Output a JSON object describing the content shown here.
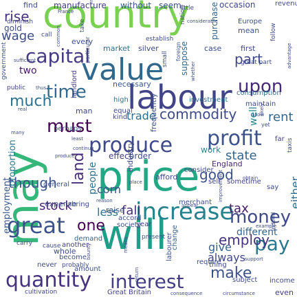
{
  "words": [
    {
      "text": "country",
      "color": "#7ad151"
    },
    {
      "text": "value",
      "color": "#31688e"
    },
    {
      "text": "labour",
      "color": "#414487"
    },
    {
      "text": "may",
      "color": "#35b779"
    },
    {
      "text": "price",
      "color": "#22a884"
    },
    {
      "text": "will",
      "color": "#1f9e89"
    },
    {
      "text": "increase",
      "color": "#26828e"
    },
    {
      "text": "produce",
      "color": "#3e4a89"
    },
    {
      "text": "profit",
      "color": "#3b528b"
    },
    {
      "text": "capital",
      "color": "#443983"
    },
    {
      "text": "time",
      "color": "#31688e"
    },
    {
      "text": "upon",
      "color": "#482878"
    },
    {
      "text": "much",
      "color": "#2c728e"
    },
    {
      "text": "must",
      "color": "#440154"
    },
    {
      "text": "great",
      "color": "#3b528b"
    },
    {
      "text": "money",
      "color": "#3e4989"
    },
    {
      "text": "pay",
      "color": "#2a788e"
    },
    {
      "text": "interest",
      "color": "#433e85"
    },
    {
      "text": "quantity",
      "color": "#46327e"
    },
    {
      "text": "make",
      "color": "#3b528b"
    },
    {
      "text": "one",
      "color": "#440154"
    },
    {
      "text": "commodity",
      "color": "#3e4a89"
    },
    {
      "text": "land",
      "color": "#472c7a"
    },
    {
      "text": "good",
      "color": "#3b528b"
    },
    {
      "text": "employ",
      "color": "#46337f"
    },
    {
      "text": "trade",
      "color": "#2e6e8e"
    },
    {
      "text": "rent",
      "color": "#31688e"
    },
    {
      "text": "part",
      "color": "#3f4889"
    },
    {
      "text": "either",
      "color": "#2e6f8e"
    },
    {
      "text": "though",
      "color": "#3a538b"
    },
    {
      "text": "wage",
      "color": "#3d4d8a"
    },
    {
      "text": "rise",
      "color": "#46307e"
    },
    {
      "text": "stock",
      "color": "#482475"
    },
    {
      "text": "less",
      "color": "#2c718e"
    },
    {
      "text": "tax",
      "color": "#481a6c"
    },
    {
      "text": "fall",
      "color": "#472c7a"
    },
    {
      "text": "give",
      "color": "#355f8d"
    },
    {
      "text": "always",
      "color": "#3f4788"
    },
    {
      "text": "corn",
      "color": "#3d4e8a"
    },
    {
      "text": "people",
      "color": "#2d708e"
    },
    {
      "text": "different",
      "color": "#33638d"
    },
    {
      "text": "state",
      "color": "#31678e"
    },
    {
      "text": "well",
      "color": "#26828e"
    },
    {
      "text": "work",
      "color": "#24868e"
    },
    {
      "text": "two",
      "color": "#481a6c"
    },
    {
      "text": "proportion",
      "color": "#2a788e"
    },
    {
      "text": "employment",
      "color": "#39568c"
    },
    {
      "text": "manufacture",
      "color": "#433d84"
    },
    {
      "text": "without",
      "color": "#38588c"
    },
    {
      "text": "seem",
      "color": "#3c508b"
    },
    {
      "text": "find",
      "color": "#3d4e8a"
    },
    {
      "text": "gold",
      "color": "#3e4c8a"
    },
    {
      "text": "every",
      "color": "#3c508b"
    },
    {
      "text": "market",
      "color": "#2d708e"
    },
    {
      "text": "silver",
      "color": "#3f4788"
    },
    {
      "text": "first",
      "color": "#414487"
    },
    {
      "text": "case",
      "color": "#3e4c8a"
    },
    {
      "text": "mean",
      "color": "#3b528b"
    },
    {
      "text": "occasion",
      "color": "#3f4788"
    },
    {
      "text": "Europe",
      "color": "#3c4f8a"
    },
    {
      "text": "revenue",
      "color": "#3e4a89"
    },
    {
      "text": "purchase",
      "color": "#33638d"
    },
    {
      "text": "suppose",
      "color": "#31688e"
    },
    {
      "text": "necessary",
      "color": "#38588c"
    },
    {
      "text": "consumption",
      "color": "#2f6c8e"
    },
    {
      "text": "investment",
      "color": "#2e6e8e"
    },
    {
      "text": "maintain",
      "color": "#3e4989"
    },
    {
      "text": "man",
      "color": "#414487"
    },
    {
      "text": "high",
      "color": "#2e6e8e"
    },
    {
      "text": "equal",
      "color": "#3e4a89"
    },
    {
      "text": "kind",
      "color": "#3f4889"
    },
    {
      "text": "landlord",
      "color": "#443a83"
    },
    {
      "text": "frequently",
      "color": "#3b528b"
    },
    {
      "text": "perhaps",
      "color": "#3c4f8a"
    },
    {
      "text": "effect",
      "color": "#433e85"
    },
    {
      "text": "order",
      "color": "#3e4c8a"
    },
    {
      "text": "England",
      "color": "#482475"
    },
    {
      "text": "industry",
      "color": "#3e4a89"
    },
    {
      "text": "afford",
      "color": "#3e4c8a"
    },
    {
      "text": "consider",
      "color": "#3d4d8a"
    },
    {
      "text": "sell",
      "color": "#3f4889"
    },
    {
      "text": "sometime",
      "color": "#414487"
    },
    {
      "text": "say",
      "color": "#3e4989"
    },
    {
      "text": "expense",
      "color": "#3d4d8a"
    },
    {
      "text": "bring",
      "color": "#3c4f8a"
    },
    {
      "text": "general",
      "color": "#3c508b"
    },
    {
      "text": "raise",
      "color": "#3a538b"
    },
    {
      "text": "accord",
      "color": "#3d4d8a"
    },
    {
      "text": "merchant",
      "color": "#3c4f8a"
    },
    {
      "text": "whole",
      "color": "#3e4a89"
    },
    {
      "text": "demand",
      "color": "#33638d"
    },
    {
      "text": "another",
      "color": "#433d84"
    },
    {
      "text": "year",
      "color": "#414487"
    },
    {
      "text": "society",
      "color": "#3b518b"
    },
    {
      "text": "labourer",
      "color": "#3d4d8a"
    },
    {
      "text": "require",
      "color": "#3e4c8a"
    },
    {
      "text": "change",
      "color": "#355f8d"
    },
    {
      "text": "thing",
      "color": "#3f4889"
    },
    {
      "text": "become",
      "color": "#3d4e8a"
    },
    {
      "text": "amount",
      "color": "#3d4e8a"
    },
    {
      "text": "Great Britain",
      "color": "#424086"
    },
    {
      "text": "subject",
      "color": "#3e4c8a"
    },
    {
      "text": "income",
      "color": "#3f4788"
    },
    {
      "text": "even",
      "color": "#433d84"
    },
    {
      "text": "never",
      "color": "#3e4989"
    },
    {
      "text": "probably",
      "color": "#3e4c8a"
    },
    {
      "text": "cultivation",
      "color": "#3f4788"
    },
    {
      "text": "public",
      "color": "#414487"
    },
    {
      "text": "government",
      "color": "#3c508b"
    },
    {
      "text": "far",
      "color": "#433e85"
    },
    {
      "text": "taxis",
      "color": "#3e4c8a"
    },
    {
      "text": "present",
      "color": "#3d4d8a"
    },
    {
      "text": "call",
      "color": "#3f4889"
    },
    {
      "text": "take",
      "color": "#3b518b"
    },
    {
      "text": "little",
      "color": "#3f4788"
    },
    {
      "text": "nation",
      "color": "#3d4e8a"
    },
    {
      "text": "small",
      "color": "#3b528b"
    },
    {
      "text": "great part",
      "color": "#3d4d8a"
    },
    {
      "text": "cause",
      "color": "#3f4788"
    },
    {
      "text": "carry",
      "color": "#3e4a89"
    },
    {
      "text": "follow",
      "color": "#3f4889"
    },
    {
      "text": "indeed",
      "color": "#3d4e8a"
    },
    {
      "text": "yet",
      "color": "#3e4989"
    },
    {
      "text": "diminish",
      "color": "#3f4788"
    },
    {
      "text": "establish",
      "color": "#3e4c8a"
    },
    {
      "text": "foreign",
      "color": "#3b528b"
    },
    {
      "text": "particular",
      "color": "#3d4e8a"
    },
    {
      "text": "France",
      "color": "#414487"
    },
    {
      "text": "common",
      "color": "#3e4a89"
    },
    {
      "text": "obtain",
      "color": "#3f4889"
    },
    {
      "text": "considerable",
      "color": "#3d4e8a"
    },
    {
      "text": "place",
      "color": "#3e4a89"
    },
    {
      "text": "circumstance",
      "color": "#3f4788"
    },
    {
      "text": "consequence",
      "color": "#3e4989"
    },
    {
      "text": "appear",
      "color": "#3d4e8a"
    },
    {
      "text": "reason",
      "color": "#3e4c8a"
    },
    {
      "text": "bounty",
      "color": "#414487"
    },
    {
      "text": "means",
      "color": "#3f4889"
    },
    {
      "text": "allow",
      "color": "#3e4a89"
    },
    {
      "text": "likely",
      "color": "#3d4e8a"
    },
    {
      "text": "least",
      "color": "#3f4788"
    },
    {
      "text": "continue",
      "color": "#3e4989"
    },
    {
      "text": "support",
      "color": "#3d4d8a"
    },
    {
      "text": "return",
      "color": "#3e4c8a"
    },
    {
      "text": "example",
      "color": "#3f4889"
    },
    {
      "text": "many",
      "color": "#3e4a89"
    },
    {
      "text": "thus",
      "color": "#3d4e8a"
    },
    {
      "text": "advantage",
      "color": "#3f4788"
    },
    {
      "text": "real",
      "color": "#3e4989"
    },
    {
      "text": "whether",
      "color": "#3d4d8a"
    },
    {
      "text": "improvement",
      "color": "#3e4c8a"
    },
    {
      "text": "sufficient",
      "color": "#3f4889"
    },
    {
      "text": "produce",
      "color": "#3e4a89"
    },
    {
      "text": "importation",
      "color": "#3d4e8a"
    }
  ]
}
